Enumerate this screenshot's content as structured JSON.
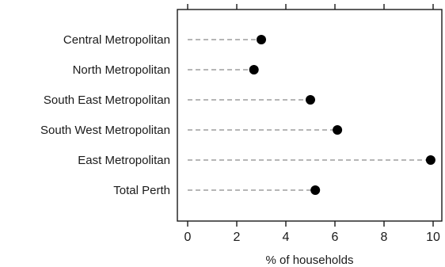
{
  "chart_data": {
    "type": "scatter",
    "style": "dot plot with dashed leader lines",
    "categories": [
      "Central Metropolitan",
      "North Metropolitan",
      "South East Metropolitan",
      "South West Metropolitan",
      "East Metropolitan",
      "Total Perth"
    ],
    "values": [
      3.0,
      2.7,
      5.0,
      6.1,
      9.9,
      5.2
    ],
    "xlabel": "% of households",
    "xlim": [
      -0.5,
      10.5
    ],
    "xticks": [
      "0",
      "2",
      "4",
      "6",
      "8",
      "10"
    ],
    "grid": false,
    "colors": {
      "dot": "#000000",
      "leader": "#8a8a8a",
      "axis": "#1a1a1a"
    }
  }
}
